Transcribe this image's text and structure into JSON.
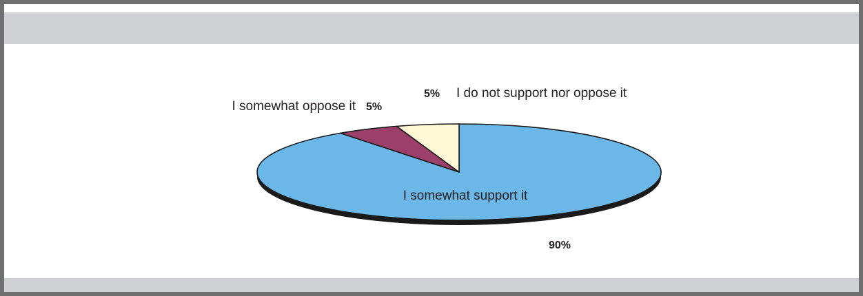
{
  "chart_data": {
    "type": "pie",
    "title": "",
    "categories": [
      "I somewhat support it",
      "I somewhat oppose it",
      "I do not support nor oppose it"
    ],
    "values": [
      90,
      5,
      5
    ],
    "value_labels": [
      "90%",
      "5%",
      "5%"
    ],
    "colors": [
      "#6bb8e8",
      "#9c3f6b",
      "#fff8d6"
    ],
    "legend": "none",
    "style": "3d-flattened"
  }
}
